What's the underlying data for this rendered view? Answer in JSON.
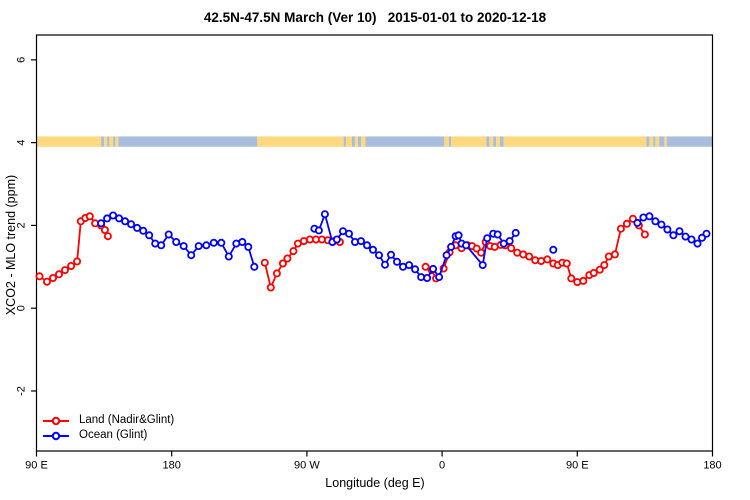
{
  "chart_data": {
    "type": "line",
    "title": "42.5N-47.5N March (Ver 10)   2015-01-01 to 2020-12-18",
    "xlabel": "Longitude (deg E)",
    "ylabel": "XCO2 - MLO trend (ppm)",
    "x_range": [
      90,
      540
    ],
    "y_range": [
      -3.45,
      6.6
    ],
    "grid": "off",
    "x_ticks": [
      {
        "x": 90,
        "label": "90 E"
      },
      {
        "x": 180,
        "label": "180"
      },
      {
        "x": 270,
        "label": "90 W"
      },
      {
        "x": 360,
        "label": "0"
      },
      {
        "x": 450,
        "label": "90 E"
      },
      {
        "x": 540,
        "label": "180"
      }
    ],
    "y_ticks": [
      {
        "v": -2,
        "label": "-2"
      },
      {
        "v": 0,
        "label": "0"
      },
      {
        "v": 2,
        "label": "2"
      },
      {
        "v": 4,
        "label": "4"
      },
      {
        "v": 6,
        "label": "6"
      }
    ],
    "map_strip": {
      "description": "world coastline strip drawn at y=4, land vs ocean along longitude",
      "value_top": 4.15,
      "value_bottom": 3.9,
      "land_color": "#FFD880",
      "ocean_color": "#A9BEDD",
      "spans": [
        [
          90,
          133,
          "land"
        ],
        [
          133,
          135,
          "ocean"
        ],
        [
          135,
          137,
          "land"
        ],
        [
          137,
          138.5,
          "ocean"
        ],
        [
          138.5,
          141,
          "land"
        ],
        [
          141,
          142.5,
          "ocean"
        ],
        [
          142.5,
          144.5,
          "land"
        ],
        [
          144.5,
          237,
          "ocean"
        ],
        [
          237,
          294.5,
          "land"
        ],
        [
          294.5,
          296,
          "ocean"
        ],
        [
          296,
          300,
          "land"
        ],
        [
          300,
          302,
          "ocean"
        ],
        [
          302,
          304,
          "land"
        ],
        [
          304,
          306,
          "ocean"
        ],
        [
          306,
          309,
          "land"
        ],
        [
          309,
          361.5,
          "ocean"
        ],
        [
          361.5,
          364.5,
          "land"
        ],
        [
          364.5,
          366,
          "ocean"
        ],
        [
          366,
          389.5,
          "land"
        ],
        [
          389.5,
          391.5,
          "ocean"
        ],
        [
          391.5,
          394,
          "land"
        ],
        [
          394,
          396,
          "ocean"
        ],
        [
          396,
          398.5,
          "land"
        ],
        [
          398.5,
          401,
          "ocean"
        ],
        [
          401,
          496,
          "land"
        ],
        [
          496,
          498,
          "ocean"
        ],
        [
          498,
          500.5,
          "land"
        ],
        [
          500.5,
          502,
          "ocean"
        ],
        [
          502,
          504.5,
          "land"
        ],
        [
          504.5,
          508,
          "ocean"
        ],
        [
          508,
          509.5,
          "land"
        ],
        [
          509.5,
          540,
          "ocean"
        ]
      ]
    },
    "legend": {
      "position": "bottom-left"
    },
    "series": [
      {
        "name": "Land (Nadir&Glint)",
        "color": "#FF0000",
        "marker": "open-circle",
        "segments": [
          [
            [
              92,
              0.77
            ],
            [
              97,
              0.64
            ],
            [
              101,
              0.73
            ],
            [
              105,
              0.82
            ],
            [
              109,
              0.92
            ],
            [
              113,
              1.02
            ],
            [
              117,
              1.13
            ],
            [
              119.5,
              2.1
            ],
            [
              122.5,
              2.18
            ],
            [
              125.5,
              2.22
            ],
            [
              129,
              2.05
            ],
            [
              133,
              2.0
            ],
            [
              135.5,
              1.89
            ],
            [
              137.5,
              1.74
            ]
          ],
          [
            [
              242,
              1.1
            ],
            [
              246,
              0.5
            ],
            [
              250,
              0.84
            ],
            [
              254,
              1.08
            ],
            [
              257,
              1.2
            ],
            [
              261,
              1.38
            ],
            [
              264,
              1.56
            ],
            [
              268,
              1.62
            ],
            [
              272,
              1.66
            ],
            [
              276,
              1.66
            ],
            [
              280,
              1.66
            ],
            [
              284,
              1.64
            ],
            [
              288,
              1.62
            ],
            [
              292,
              1.6
            ]
          ],
          [
            [
              349,
              1.0
            ],
            [
              353,
              0.92
            ],
            [
              356,
              0.72
            ],
            [
              361,
              0.96
            ],
            [
              365,
              1.35
            ],
            [
              369,
              1.52
            ],
            [
              373,
              1.45
            ],
            [
              377,
              1.52
            ],
            [
              380,
              1.5
            ],
            [
              383,
              1.44
            ],
            [
              386,
              1.34
            ],
            [
              389,
              1.6
            ],
            [
              392,
              1.5
            ],
            [
              395,
              1.48
            ],
            [
              399,
              1.53
            ],
            [
              402,
              1.52
            ],
            [
              406,
              1.45
            ],
            [
              410,
              1.34
            ],
            [
              414,
              1.3
            ],
            [
              418,
              1.25
            ],
            [
              422,
              1.16
            ],
            [
              426,
              1.14
            ],
            [
              430,
              1.18
            ],
            [
              434,
              1.08
            ],
            [
              437,
              1.04
            ],
            [
              440,
              1.1
            ],
            [
              443,
              1.08
            ],
            [
              446,
              0.72
            ],
            [
              450,
              0.63
            ],
            [
              454,
              0.66
            ],
            [
              458,
              0.8
            ],
            [
              461,
              0.85
            ],
            [
              465,
              0.93
            ],
            [
              468,
              1.04
            ],
            [
              471,
              1.25
            ],
            [
              475,
              1.3
            ],
            [
              479,
              1.92
            ],
            [
              483,
              2.04
            ],
            [
              487,
              2.16
            ],
            [
              491,
              2.0
            ],
            [
              495,
              1.78
            ]
          ]
        ]
      },
      {
        "name": "Ocean (Glint)",
        "color": "#0000FF",
        "marker": "open-circle",
        "segments": [
          [
            [
              133,
              2.05
            ],
            [
              137,
              2.17
            ],
            [
              141,
              2.24
            ],
            [
              145,
              2.17
            ],
            [
              149,
              2.1
            ],
            [
              153,
              2.03
            ],
            [
              157,
              1.94
            ],
            [
              161,
              1.87
            ],
            [
              165,
              1.76
            ],
            [
              169,
              1.56
            ],
            [
              173,
              1.52
            ],
            [
              178,
              1.78
            ],
            [
              183,
              1.6
            ],
            [
              188,
              1.5
            ],
            [
              193,
              1.28
            ],
            [
              198,
              1.5
            ],
            [
              203,
              1.52
            ],
            [
              208,
              1.58
            ],
            [
              213,
              1.58
            ],
            [
              218,
              1.25
            ],
            [
              223,
              1.56
            ],
            [
              227,
              1.6
            ],
            [
              231,
              1.48
            ],
            [
              235,
              1.0
            ]
          ],
          [
            [
              275,
              1.92
            ],
            [
              278,
              1.88
            ],
            [
              282,
              2.27
            ],
            [
              287,
              1.6
            ],
            [
              290,
              1.66
            ],
            [
              294,
              1.86
            ],
            [
              298,
              1.8
            ],
            [
              302,
              1.6
            ],
            [
              306,
              1.62
            ],
            [
              310,
              1.52
            ],
            [
              314,
              1.41
            ],
            [
              318,
              1.28
            ],
            [
              322,
              1.05
            ],
            [
              326,
              1.29
            ],
            [
              330,
              1.12
            ],
            [
              334,
              1.0
            ],
            [
              338,
              1.04
            ],
            [
              342,
              0.94
            ],
            [
              346,
              0.75
            ],
            [
              350,
              0.73
            ],
            [
              354,
              0.95
            ],
            [
              358,
              0.75
            ],
            [
              363,
              1.28
            ],
            [
              366,
              1.48
            ],
            [
              369,
              1.74
            ],
            [
              371,
              1.76
            ],
            [
              373,
              1.56
            ],
            [
              376,
              1.52
            ],
            [
              387,
              1.04
            ],
            [
              390,
              1.69
            ],
            [
              394,
              1.8
            ],
            [
              397,
              1.78
            ],
            [
              401,
              1.56
            ],
            [
              405,
              1.62
            ],
            [
              409,
              1.82
            ]
          ],
          [
            [
              434,
              1.41
            ]
          ],
          [
            [
              490,
              2.06
            ],
            [
              494,
              2.19
            ],
            [
              498,
              2.22
            ],
            [
              502,
              2.1
            ],
            [
              506,
              2.02
            ],
            [
              510,
              1.9
            ],
            [
              514,
              1.76
            ],
            [
              518,
              1.86
            ],
            [
              522,
              1.73
            ],
            [
              526,
              1.66
            ],
            [
              530,
              1.56
            ],
            [
              533,
              1.7
            ],
            [
              536,
              1.8
            ]
          ]
        ]
      }
    ]
  }
}
